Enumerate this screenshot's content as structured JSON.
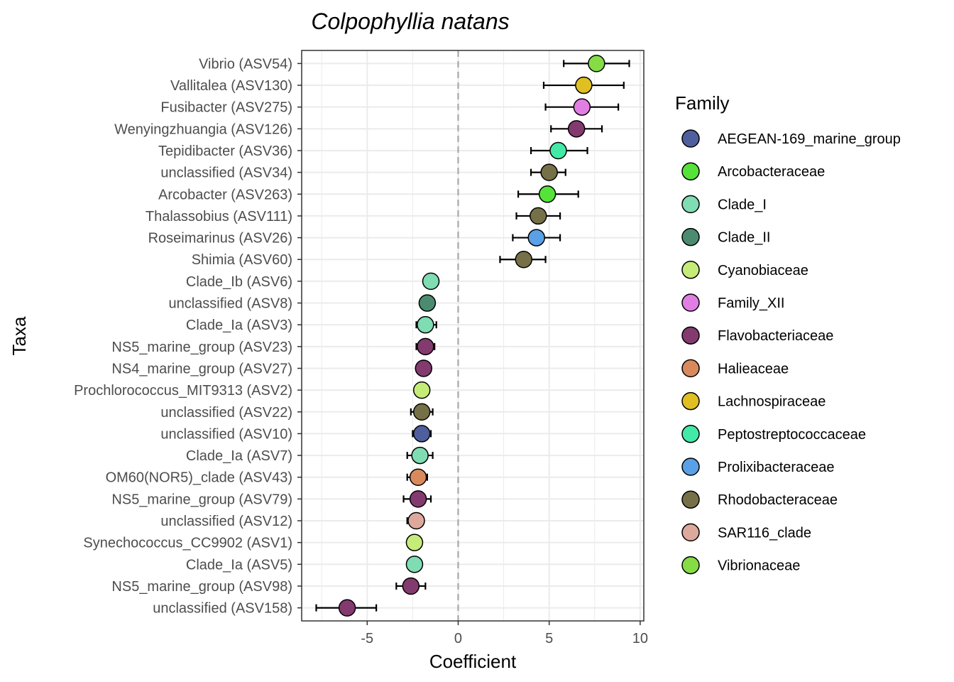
{
  "chart_data": {
    "type": "scatter",
    "title": "Colpophyllia natans",
    "xlabel": "Coefficient",
    "ylabel": "Taxa",
    "xlim": [
      -8.6,
      10.2
    ],
    "xticks": [
      -5,
      0,
      5,
      10
    ],
    "xtick_labels": [
      "-5",
      "0",
      "5",
      "10"
    ],
    "reference_line_x": 0,
    "grid": true,
    "legend_title": "Family",
    "legend_position": "right",
    "families": [
      {
        "name": "AEGEAN-169_marine_group",
        "color": "#4f5f9e"
      },
      {
        "name": "Arcobacteraceae",
        "color": "#55e33a"
      },
      {
        "name": "Clade_I",
        "color": "#7fdcb3"
      },
      {
        "name": "Clade_II",
        "color": "#4c8b70"
      },
      {
        "name": "Cyanobiaceae",
        "color": "#c5ec78"
      },
      {
        "name": "Family_XII",
        "color": "#e07ee3"
      },
      {
        "name": "Flavobacteriaceae",
        "color": "#833a6f"
      },
      {
        "name": "Halieaceae",
        "color": "#d98a5d"
      },
      {
        "name": "Lachnospiraceae",
        "color": "#e0bf22"
      },
      {
        "name": "Peptostreptococcaceae",
        "color": "#43eaa7"
      },
      {
        "name": "Prolixibacteraceae",
        "color": "#5aa0e6"
      },
      {
        "name": "Rhodobacteraceae",
        "color": "#767048"
      },
      {
        "name": "SAR116_clade",
        "color": "#dea99d"
      },
      {
        "name": "Vibrionaceae",
        "color": "#85dc45"
      }
    ],
    "points": [
      {
        "taxon": "Vibrio (ASV54)",
        "family": "Vibrionaceae",
        "coef": 7.6,
        "lo": 5.8,
        "hi": 9.4
      },
      {
        "taxon": "Vallitalea (ASV130)",
        "family": "Lachnospiraceae",
        "coef": 6.9,
        "lo": 4.7,
        "hi": 9.1
      },
      {
        "taxon": "Fusibacter (ASV275)",
        "family": "Family_XII",
        "coef": 6.8,
        "lo": 4.8,
        "hi": 8.8
      },
      {
        "taxon": "Wenyingzhuangia (ASV126)",
        "family": "Flavobacteriaceae",
        "coef": 6.5,
        "lo": 5.1,
        "hi": 7.9
      },
      {
        "taxon": "Tepidibacter (ASV36)",
        "family": "Peptostreptococcaceae",
        "coef": 5.5,
        "lo": 4.0,
        "hi": 7.1
      },
      {
        "taxon": "unclassified (ASV34)",
        "family": "Rhodobacteraceae",
        "coef": 5.0,
        "lo": 4.0,
        "hi": 5.9
      },
      {
        "taxon": "Arcobacter (ASV263)",
        "family": "Arcobacteraceae",
        "coef": 4.9,
        "lo": 3.3,
        "hi": 6.6
      },
      {
        "taxon": "Thalassobius (ASV111)",
        "family": "Rhodobacteraceae",
        "coef": 4.4,
        "lo": 3.2,
        "hi": 5.6
      },
      {
        "taxon": "Roseimarinus (ASV26)",
        "family": "Prolixibacteraceae",
        "coef": 4.3,
        "lo": 3.0,
        "hi": 5.6
      },
      {
        "taxon": "Shimia (ASV60)",
        "family": "Rhodobacteraceae",
        "coef": 3.6,
        "lo": 2.3,
        "hi": 4.8
      },
      {
        "taxon": "Clade_Ib (ASV6)",
        "family": "Clade_I",
        "coef": -1.5,
        "lo": -1.5,
        "hi": -1.5
      },
      {
        "taxon": "unclassified (ASV8)",
        "family": "Clade_II",
        "coef": -1.7,
        "lo": -1.7,
        "hi": -1.7
      },
      {
        "taxon": "Clade_Ia (ASV3)",
        "family": "Clade_I",
        "coef": -1.8,
        "lo": -2.3,
        "hi": -1.2
      },
      {
        "taxon": "NS5_marine_group (ASV23)",
        "family": "Flavobacteriaceae",
        "coef": -1.8,
        "lo": -2.3,
        "hi": -1.3
      },
      {
        "taxon": "NS4_marine_group (ASV27)",
        "family": "Flavobacteriaceae",
        "coef": -1.9,
        "lo": -2.3,
        "hi": -1.5
      },
      {
        "taxon": "Prochlorococcus_MIT9313 (ASV2)",
        "family": "Cyanobiaceae",
        "coef": -2.0,
        "lo": -2.3,
        "hi": -1.6
      },
      {
        "taxon": "unclassified (ASV22)",
        "family": "Rhodobacteraceae",
        "coef": -2.0,
        "lo": -2.6,
        "hi": -1.4
      },
      {
        "taxon": "unclassified (ASV10)",
        "family": "AEGEAN-169_marine_group",
        "coef": -2.0,
        "lo": -2.5,
        "hi": -1.5
      },
      {
        "taxon": "Clade_Ia (ASV7)",
        "family": "Clade_I",
        "coef": -2.1,
        "lo": -2.8,
        "hi": -1.4
      },
      {
        "taxon": "OM60(NOR5)_clade (ASV43)",
        "family": "Halieaceae",
        "coef": -2.2,
        "lo": -2.8,
        "hi": -1.7
      },
      {
        "taxon": "NS5_marine_group (ASV79)",
        "family": "Flavobacteriaceae",
        "coef": -2.2,
        "lo": -3.0,
        "hi": -1.5
      },
      {
        "taxon": "unclassified (ASV12)",
        "family": "SAR116_clade",
        "coef": -2.3,
        "lo": -2.8,
        "hi": -1.9
      },
      {
        "taxon": "Synechococcus_CC9902 (ASV1)",
        "family": "Cyanobiaceae",
        "coef": -2.4,
        "lo": -2.4,
        "hi": -2.4
      },
      {
        "taxon": "Clade_Ia (ASV5)",
        "family": "Clade_I",
        "coef": -2.4,
        "lo": -2.4,
        "hi": -2.4
      },
      {
        "taxon": "NS5_marine_group (ASV98)",
        "family": "Flavobacteriaceae",
        "coef": -2.6,
        "lo": -3.4,
        "hi": -1.8
      },
      {
        "taxon": "unclassified (ASV158)",
        "family": "Flavobacteriaceae",
        "coef": -6.1,
        "lo": -7.8,
        "hi": -4.5
      }
    ]
  }
}
